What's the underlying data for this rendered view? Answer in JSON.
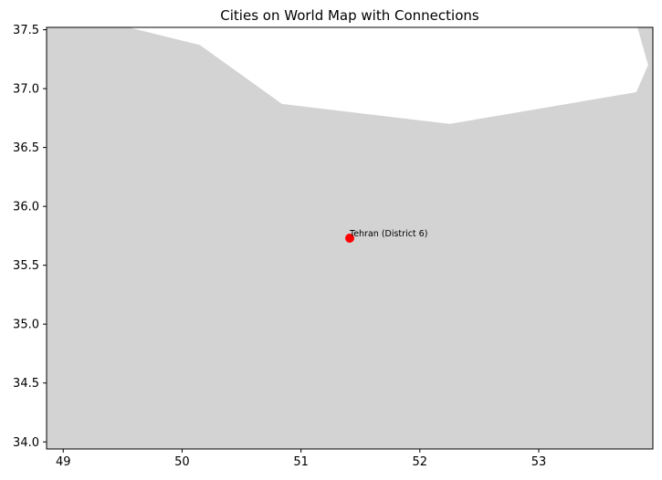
{
  "title": "Cities on World Map with Connections",
  "colors": {
    "land": "#d3d3d3",
    "ocean": "#ffffff",
    "city_marker": "#ff0000",
    "frame": "#000000"
  },
  "chart_data": {
    "type": "scatter",
    "title": "Cities on World Map with Connections",
    "xlabel": "",
    "ylabel": "",
    "xlim": [
      48.86,
      53.96
    ],
    "ylim": [
      33.94,
      37.52
    ],
    "x_ticks": [
      "49",
      "50",
      "51",
      "52",
      "53"
    ],
    "y_ticks": [
      "34.0",
      "34.5",
      "35.0",
      "35.5",
      "36.0",
      "36.5",
      "37.0",
      "37.5"
    ],
    "grid": false,
    "land_boundary": [
      [
        48.86,
        37.52
      ],
      [
        49.55,
        37.52
      ],
      [
        50.15,
        37.37
      ],
      [
        50.84,
        36.87
      ],
      [
        52.25,
        36.7
      ],
      [
        53.82,
        36.97
      ],
      [
        53.92,
        37.2
      ],
      [
        53.83,
        37.52
      ],
      [
        53.96,
        37.52
      ],
      [
        53.96,
        33.94
      ],
      [
        48.86,
        33.94
      ]
    ],
    "cities": [
      {
        "name": "Tehran (District 6)",
        "lon": 51.41,
        "lat": 35.73
      }
    ],
    "connections": []
  }
}
